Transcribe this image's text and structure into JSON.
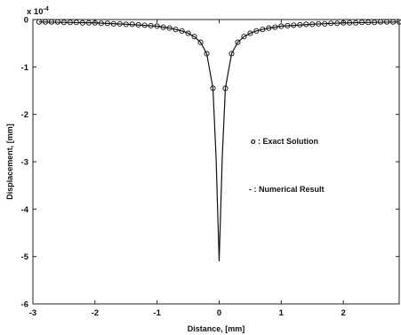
{
  "chart_data": {
    "type": "line",
    "title": "",
    "xlabel": "Distance, [mm]",
    "ylabel": "Displacement, [mm]",
    "y_multiplier": {
      "base": "x 10",
      "exponent": "-4"
    },
    "xlim": [
      -3,
      2.9
    ],
    "ylim": [
      -6,
      0
    ],
    "x_ticks": [
      -3,
      -2,
      -1,
      0,
      1,
      2
    ],
    "x_tick_labels": [
      "-3",
      "-2",
      "-1",
      "0",
      "1",
      "2"
    ],
    "y_ticks": [
      0,
      -1,
      -2,
      -3,
      -4,
      -5,
      -6
    ],
    "y_tick_labels": [
      "0",
      "-1",
      "-2",
      "-3",
      "-4",
      "-5",
      "-6"
    ],
    "grid": false,
    "legend_position": "right-middle",
    "series": [
      {
        "name": "Exact Solution",
        "legend_label": "o : Exact Solution",
        "style": "markers",
        "marker": "circle",
        "x": [
          -2.9,
          -2.8,
          -2.7,
          -2.6,
          -2.5,
          -2.4,
          -2.3,
          -2.2,
          -2.1,
          -2.0,
          -1.9,
          -1.8,
          -1.7,
          -1.6,
          -1.5,
          -1.4,
          -1.3,
          -1.2,
          -1.1,
          -1.0,
          -0.9,
          -0.8,
          -0.7,
          -0.6,
          -0.5,
          -0.4,
          -0.3,
          -0.2,
          -0.1,
          0.1,
          0.2,
          0.3,
          0.4,
          0.5,
          0.6,
          0.7,
          0.8,
          0.9,
          1.0,
          1.1,
          1.2,
          1.3,
          1.4,
          1.5,
          1.6,
          1.7,
          1.8,
          1.9,
          2.0,
          2.1,
          2.2,
          2.3,
          2.4,
          2.5,
          2.6,
          2.7,
          2.8,
          2.9
        ],
        "y": [
          -0.05,
          -0.05,
          -0.05,
          -0.05,
          -0.06,
          -0.06,
          -0.06,
          -0.07,
          -0.07,
          -0.07,
          -0.08,
          -0.08,
          -0.09,
          -0.09,
          -0.1,
          -0.1,
          -0.11,
          -0.12,
          -0.13,
          -0.14,
          -0.16,
          -0.18,
          -0.21,
          -0.24,
          -0.29,
          -0.36,
          -0.48,
          -0.72,
          -1.45,
          -1.45,
          -0.72,
          -0.48,
          -0.36,
          -0.29,
          -0.24,
          -0.21,
          -0.18,
          -0.16,
          -0.14,
          -0.13,
          -0.12,
          -0.11,
          -0.1,
          -0.1,
          -0.09,
          -0.09,
          -0.08,
          -0.08,
          -0.07,
          -0.07,
          -0.07,
          -0.06,
          -0.06,
          -0.06,
          -0.05,
          -0.05,
          -0.05,
          -0.05
        ]
      },
      {
        "name": "Numerical Result",
        "legend_label": "- : Numerical Result",
        "style": "line",
        "x": [
          -2.9,
          -2.5,
          -2.0,
          -1.5,
          -1.0,
          -0.8,
          -0.6,
          -0.5,
          -0.4,
          -0.3,
          -0.2,
          -0.1,
          -0.05,
          0.0,
          0.05,
          0.1,
          0.2,
          0.3,
          0.4,
          0.5,
          0.6,
          0.8,
          1.0,
          1.5,
          2.0,
          2.5,
          2.9
        ],
        "y": [
          -0.05,
          -0.06,
          -0.07,
          -0.1,
          -0.14,
          -0.18,
          -0.24,
          -0.29,
          -0.36,
          -0.48,
          -0.72,
          -1.45,
          -2.9,
          -5.1,
          -2.9,
          -1.45,
          -0.72,
          -0.48,
          -0.36,
          -0.29,
          -0.24,
          -0.18,
          -0.14,
          -0.1,
          -0.07,
          -0.06,
          -0.05
        ]
      }
    ]
  }
}
